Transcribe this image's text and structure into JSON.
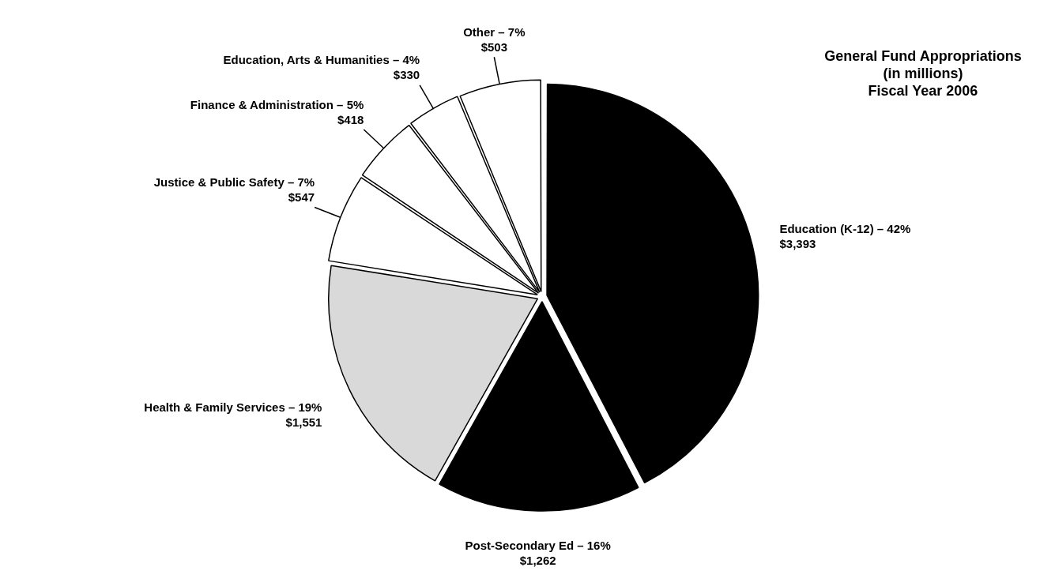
{
  "chart_data": {
    "type": "pie",
    "title": "General Fund Appropriations",
    "subtitle": "(in millions)\nFiscal Year 2006",
    "categories": [
      "Education (K-12) – 42%",
      "Post-Secondary Ed – 16%",
      "Health & Family Services – 19%",
      "Justice & Public Safety – 7%",
      "Finance & Administration – 5%",
      "Education, Arts & Humanities – 4%",
      "Other – 7%"
    ],
    "values": [
      3393,
      1262,
      1551,
      547,
      418,
      330,
      503
    ],
    "value_labels": [
      "$3,393",
      "$1,262",
      "$1,551",
      "$547",
      "$418",
      "$330",
      "$503"
    ],
    "colors": [
      "#000000",
      "#000000",
      "#d9d9d9",
      "#ffffff",
      "#ffffff",
      "#ffffff",
      "#ffffff"
    ]
  }
}
